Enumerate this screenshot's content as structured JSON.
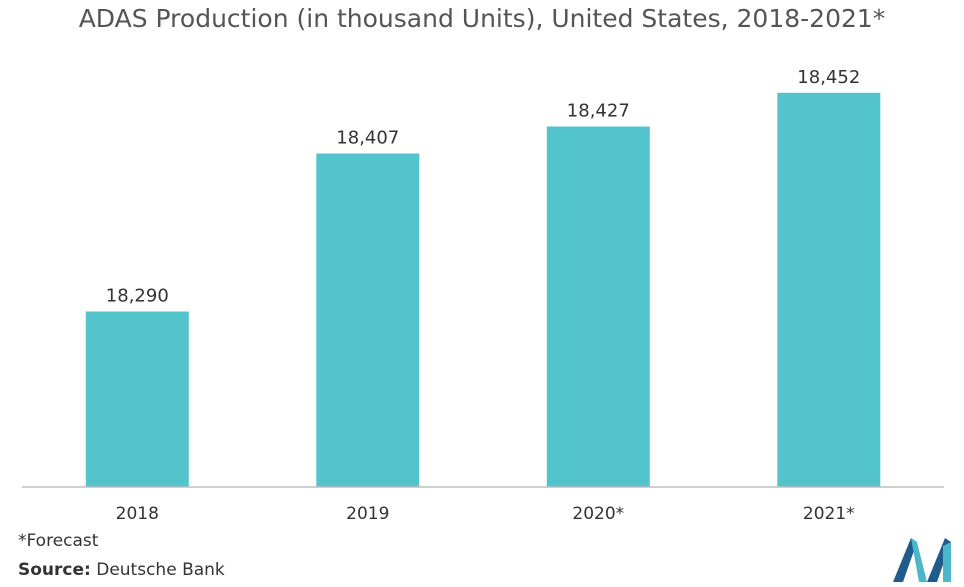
{
  "title": "ADAS Production (in thousand Units), United States, 2018-2021*",
  "footnote": "*Forecast",
  "source": {
    "label": "Source:",
    "text": "Deutsche Bank"
  },
  "colors": {
    "bar": "#53C4CC",
    "axis": "#BFBFBF",
    "logo_dark": "#1F5C8C",
    "logo_light": "#4DB6C8"
  },
  "chart_data": {
    "type": "bar",
    "title": "ADAS Production (in thousand Units), United States, 2018-2021*",
    "categories": [
      "2018",
      "2019",
      "2020*",
      "2021*"
    ],
    "values": [
      18290,
      18407,
      18427,
      18452
    ],
    "data_labels": [
      "18,290",
      "18,407",
      "18,427",
      "18,452"
    ],
    "xlabel": "",
    "ylabel": "",
    "ylim": [
      18160,
      18480
    ],
    "grid": false,
    "legend": "none"
  }
}
